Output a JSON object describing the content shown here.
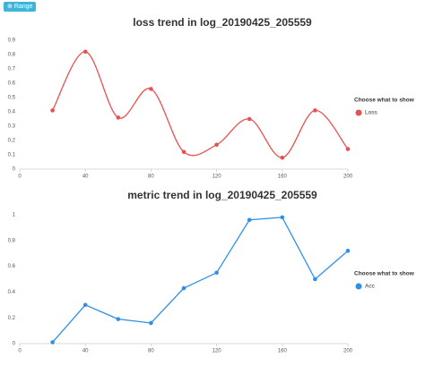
{
  "range_button": "Range",
  "chart_data": [
    {
      "type": "line",
      "smooth": true,
      "title": "loss trend in log_20190425_205559",
      "legend_title": "Choose what to show",
      "x": [
        20,
        40,
        60,
        80,
        100,
        120,
        140,
        160,
        180,
        200
      ],
      "series": [
        {
          "name": "Loss",
          "color": "#e8514f",
          "values": [
            0.41,
            0.82,
            0.36,
            0.56,
            0.12,
            0.17,
            0.35,
            0.08,
            0.41,
            0.14
          ]
        }
      ],
      "xlim": [
        0,
        200
      ],
      "xticks": [
        0,
        40,
        80,
        120,
        160,
        200
      ],
      "ylim": [
        0,
        0.9
      ],
      "yticks": [
        0,
        0.1,
        0.2,
        0.3,
        0.4,
        0.5,
        0.6,
        0.7,
        0.8,
        0.9
      ],
      "grid": false
    },
    {
      "type": "line",
      "smooth": false,
      "title": "metric trend in log_20190425_205559",
      "legend_title": "Choose what to show",
      "x": [
        20,
        40,
        60,
        80,
        100,
        120,
        140,
        160,
        180,
        200
      ],
      "series": [
        {
          "name": "Acc",
          "color": "#2f8fe8",
          "values": [
            0.01,
            0.3,
            0.19,
            0.16,
            0.43,
            0.55,
            0.96,
            0.98,
            0.5,
            0.72
          ]
        }
      ],
      "xlim": [
        0,
        200
      ],
      "xticks": [
        0,
        40,
        80,
        120,
        160,
        200
      ],
      "ylim": [
        0,
        1
      ],
      "yticks": [
        0,
        0.2,
        0.4,
        0.6,
        0.8,
        1
      ],
      "grid": false
    }
  ]
}
